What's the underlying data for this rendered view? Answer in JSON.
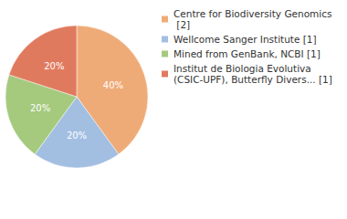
{
  "chart_data": {
    "type": "pie",
    "categories": [
      "Centre for Biodiversity Genomics [2]",
      "Wellcome Sanger Institute [1]",
      "Mined from GenBank, NCBI [1]",
      "Institut de Biologia Evolutiva (CSIC-UPF), Butterfly Divers... [1]"
    ],
    "values": [
      40,
      20,
      20,
      20
    ],
    "value_labels": [
      "40%",
      "20%",
      "20%",
      "20%"
    ],
    "colors": [
      "#efab77",
      "#a2bee1",
      "#a5ca7e",
      "#e07a5e"
    ],
    "data_labels": true,
    "legend": "right"
  }
}
